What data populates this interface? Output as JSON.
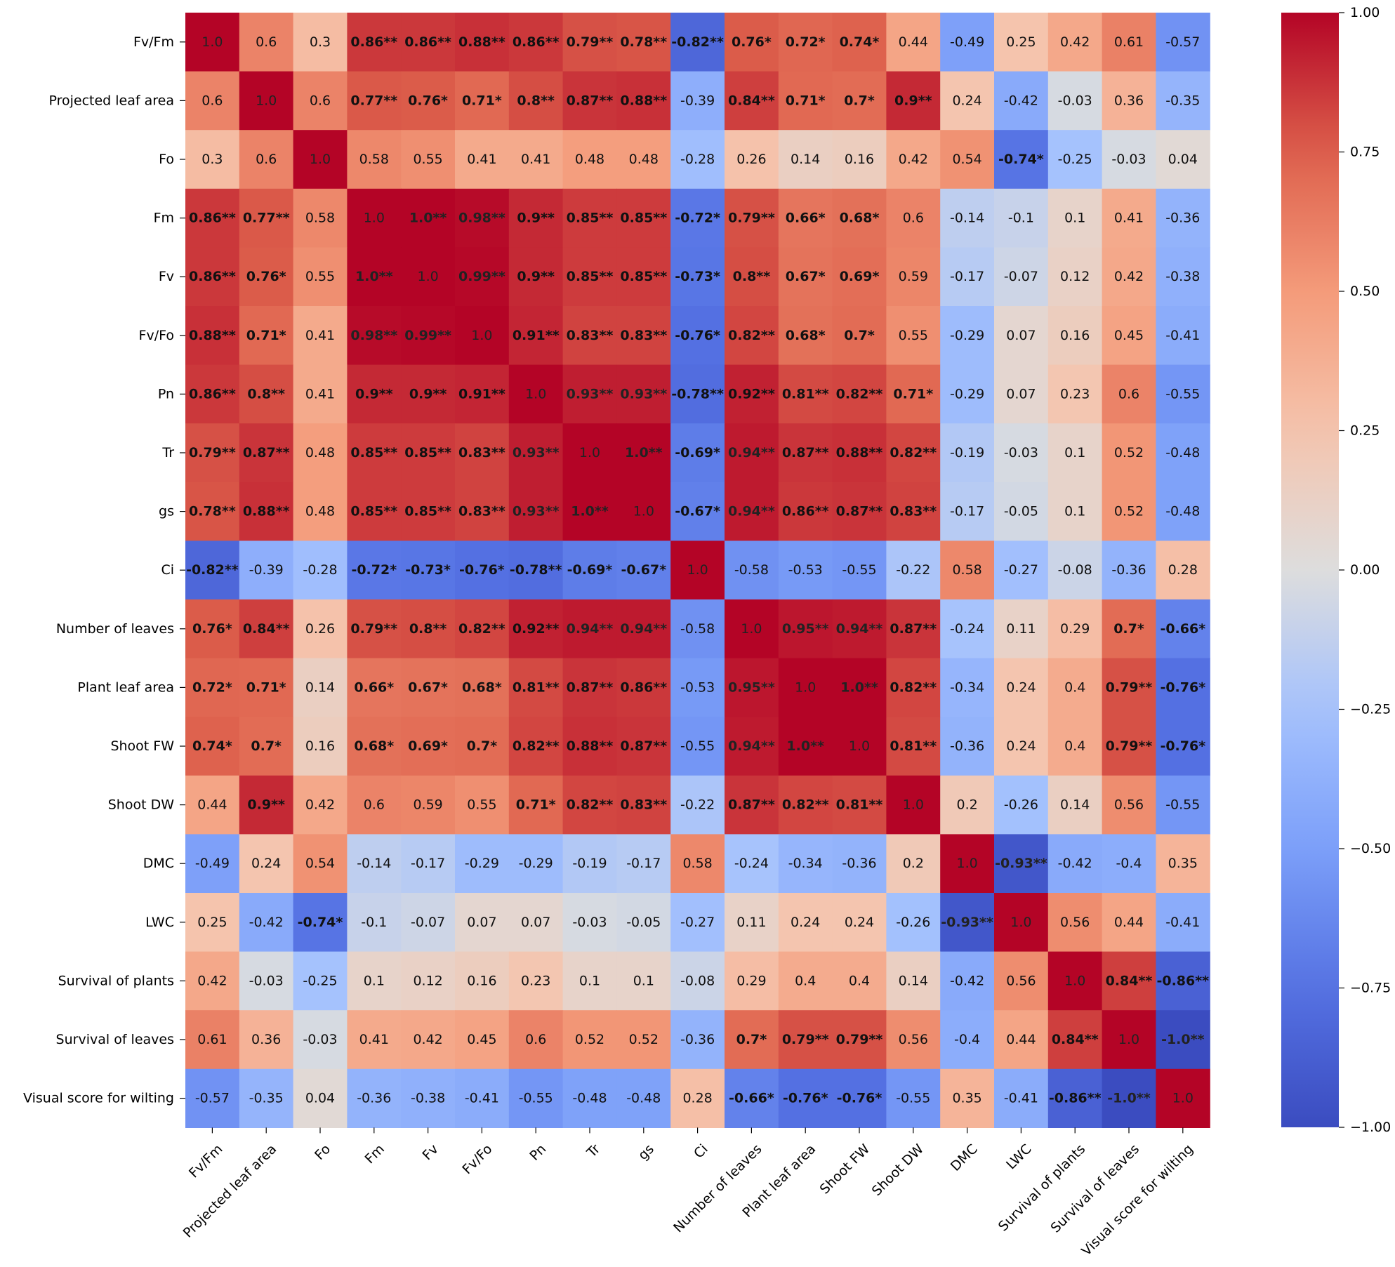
{
  "chart_data": {
    "type": "heatmap",
    "title": "",
    "xlabel": "",
    "ylabel": "",
    "colormap": "coolwarm",
    "value_range": [
      -1,
      1
    ],
    "significance_note": "bold values marked * or ** denote significant correlations",
    "variables": [
      "Fv/Fm",
      "Projected leaf area",
      "Fo",
      "Fm",
      "Fv",
      "Fv/Fo",
      "Pn",
      "Tr",
      "gs",
      "Ci",
      "Number of leaves",
      "Plant leaf area",
      "Shoot FW",
      "Shoot DW",
      "DMC",
      "LWC",
      "Survival of plants",
      "Survival of leaves",
      "Visual score for wilting"
    ],
    "cells": [
      [
        "1.0",
        "0.6",
        "0.3",
        "0.86**",
        "0.86**",
        "0.88**",
        "0.86**",
        "0.79**",
        "0.78**",
        "-0.82**",
        "0.76*",
        "0.72*",
        "0.74*",
        "0.44",
        "-0.49",
        "0.25",
        "0.42",
        "0.61",
        "-0.57"
      ],
      [
        "0.6",
        "1.0",
        "0.6",
        "0.77**",
        "0.76*",
        "0.71*",
        "0.8**",
        "0.87**",
        "0.88**",
        "-0.39",
        "0.84**",
        "0.71*",
        "0.7*",
        "0.9**",
        "0.24",
        "-0.42",
        "-0.03",
        "0.36",
        "-0.35"
      ],
      [
        "0.3",
        "0.6",
        "1.0",
        "0.58",
        "0.55",
        "0.41",
        "0.41",
        "0.48",
        "0.48",
        "-0.28",
        "0.26",
        "0.14",
        "0.16",
        "0.42",
        "0.54",
        "-0.74*",
        "-0.25",
        "-0.03",
        "0.04"
      ],
      [
        "0.86**",
        "0.77**",
        "0.58",
        "1.0",
        "1.0**",
        "0.98**",
        "0.9**",
        "0.85**",
        "0.85**",
        "-0.72*",
        "0.79**",
        "0.66*",
        "0.68*",
        "0.6",
        "-0.14",
        "-0.1",
        "0.1",
        "0.41",
        "-0.36"
      ],
      [
        "0.86**",
        "0.76*",
        "0.55",
        "1.0**",
        "1.0",
        "0.99**",
        "0.9**",
        "0.85**",
        "0.85**",
        "-0.73*",
        "0.8**",
        "0.67*",
        "0.69*",
        "0.59",
        "-0.17",
        "-0.07",
        "0.12",
        "0.42",
        "-0.38"
      ],
      [
        "0.88**",
        "0.71*",
        "0.41",
        "0.98**",
        "0.99**",
        "1.0",
        "0.91**",
        "0.83**",
        "0.83**",
        "-0.76*",
        "0.82**",
        "0.68*",
        "0.7*",
        "0.55",
        "-0.29",
        "0.07",
        "0.16",
        "0.45",
        "-0.41"
      ],
      [
        "0.86**",
        "0.8**",
        "0.41",
        "0.9**",
        "0.9**",
        "0.91**",
        "1.0",
        "0.93**",
        "0.93**",
        "-0.78**",
        "0.92**",
        "0.81**",
        "0.82**",
        "0.71*",
        "-0.29",
        "0.07",
        "0.23",
        "0.6",
        "-0.55"
      ],
      [
        "0.79**",
        "0.87**",
        "0.48",
        "0.85**",
        "0.85**",
        "0.83**",
        "0.93**",
        "1.0",
        "1.0**",
        "-0.69*",
        "0.94**",
        "0.87**",
        "0.88**",
        "0.82**",
        "-0.19",
        "-0.03",
        "0.1",
        "0.52",
        "-0.48"
      ],
      [
        "0.78**",
        "0.88**",
        "0.48",
        "0.85**",
        "0.85**",
        "0.83**",
        "0.93**",
        "1.0**",
        "1.0",
        "-0.67*",
        "0.94**",
        "0.86**",
        "0.87**",
        "0.83**",
        "-0.17",
        "-0.05",
        "0.1",
        "0.52",
        "-0.48"
      ],
      [
        "-0.82**",
        "-0.39",
        "-0.28",
        "-0.72*",
        "-0.73*",
        "-0.76*",
        "-0.78**",
        "-0.69*",
        "-0.67*",
        "1.0",
        "-0.58",
        "-0.53",
        "-0.55",
        "-0.22",
        "0.58",
        "-0.27",
        "-0.08",
        "-0.36",
        "0.28"
      ],
      [
        "0.76*",
        "0.84**",
        "0.26",
        "0.79**",
        "0.8**",
        "0.82**",
        "0.92**",
        "0.94**",
        "0.94**",
        "-0.58",
        "1.0",
        "0.95**",
        "0.94**",
        "0.87**",
        "-0.24",
        "0.11",
        "0.29",
        "0.7*",
        "-0.66*"
      ],
      [
        "0.72*",
        "0.71*",
        "0.14",
        "0.66*",
        "0.67*",
        "0.68*",
        "0.81**",
        "0.87**",
        "0.86**",
        "-0.53",
        "0.95**",
        "1.0",
        "1.0**",
        "0.82**",
        "-0.34",
        "0.24",
        "0.4",
        "0.79**",
        "-0.76*"
      ],
      [
        "0.74*",
        "0.7*",
        "0.16",
        "0.68*",
        "0.69*",
        "0.7*",
        "0.82**",
        "0.88**",
        "0.87**",
        "-0.55",
        "0.94**",
        "1.0**",
        "1.0",
        "0.81**",
        "-0.36",
        "0.24",
        "0.4",
        "0.79**",
        "-0.76*"
      ],
      [
        "0.44",
        "0.9**",
        "0.42",
        "0.6",
        "0.59",
        "0.55",
        "0.71*",
        "0.82**",
        "0.83**",
        "-0.22",
        "0.87**",
        "0.82**",
        "0.81**",
        "1.0",
        "0.2",
        "-0.26",
        "0.14",
        "0.56",
        "-0.55"
      ],
      [
        "-0.49",
        "0.24",
        "0.54",
        "-0.14",
        "-0.17",
        "-0.29",
        "-0.29",
        "-0.19",
        "-0.17",
        "0.58",
        "-0.24",
        "-0.34",
        "-0.36",
        "0.2",
        "1.0",
        "-0.93**",
        "-0.42",
        "-0.4",
        "0.35"
      ],
      [
        "0.25",
        "-0.42",
        "-0.74*",
        "-0.1",
        "-0.07",
        "0.07",
        "0.07",
        "-0.03",
        "-0.05",
        "-0.27",
        "0.11",
        "0.24",
        "0.24",
        "-0.26",
        "-0.93**",
        "1.0",
        "0.56",
        "0.44",
        "-0.41"
      ],
      [
        "0.42",
        "-0.03",
        "-0.25",
        "0.1",
        "0.12",
        "0.16",
        "0.23",
        "0.1",
        "0.1",
        "-0.08",
        "0.29",
        "0.4",
        "0.4",
        "0.14",
        "-0.42",
        "0.56",
        "1.0",
        "0.84**",
        "-0.86**"
      ],
      [
        "0.61",
        "0.36",
        "-0.03",
        "0.41",
        "0.42",
        "0.45",
        "0.6",
        "0.52",
        "0.52",
        "-0.36",
        "0.7*",
        "0.79**",
        "0.79**",
        "0.56",
        "-0.4",
        "0.44",
        "0.84**",
        "1.0",
        "-1.0**"
      ],
      [
        "-0.57",
        "-0.35",
        "0.04",
        "-0.36",
        "-0.38",
        "-0.41",
        "-0.55",
        "-0.48",
        "-0.48",
        "0.28",
        "-0.66*",
        "-0.76*",
        "-0.76*",
        "-0.55",
        "0.35",
        "-0.41",
        "-0.86**",
        "-1.0**",
        "1.0"
      ]
    ],
    "colorbar": {
      "ticks": [
        1.0,
        0.75,
        0.5,
        0.25,
        0.0,
        -0.25,
        -0.5,
        -0.75,
        -1.0
      ],
      "tick_labels": [
        "1.00",
        "0.75",
        "0.50",
        "0.25",
        "0.00",
        "−0.25",
        "−0.50",
        "−0.75",
        "−1.00"
      ]
    }
  }
}
